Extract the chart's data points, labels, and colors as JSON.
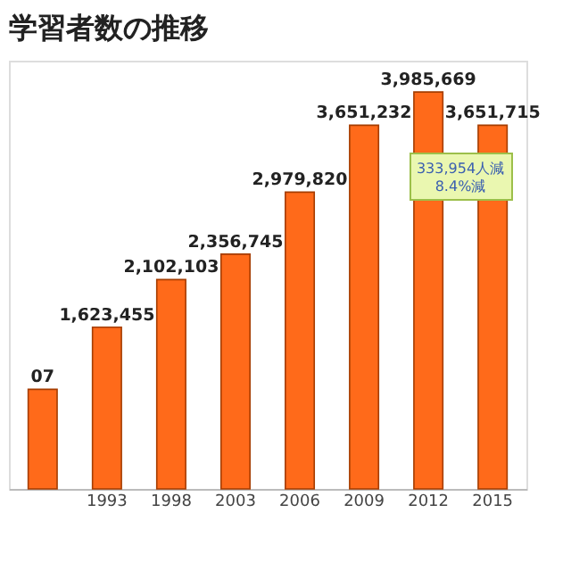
{
  "chart_data": {
    "type": "bar",
    "title": "学習者数の推移",
    "categories": [
      null,
      "1993",
      "1998",
      "2003",
      "2006",
      "2009",
      "2012",
      "2015"
    ],
    "values": [
      1000000,
      1623455,
      2102103,
      2356745,
      2979820,
      3651232,
      3985669,
      3651715
    ],
    "value_labels": [
      null,
      "1,623,455",
      "2,102,103",
      "2,356,745",
      "2,979,820",
      "3,651,232",
      "3,985,669",
      "3,651,715"
    ],
    "color": "#ff6a1a",
    "ylim": [
      0,
      4300000
    ],
    "annotations": [
      "333,954人減\n8.4%減",
      "07"
    ]
  }
}
